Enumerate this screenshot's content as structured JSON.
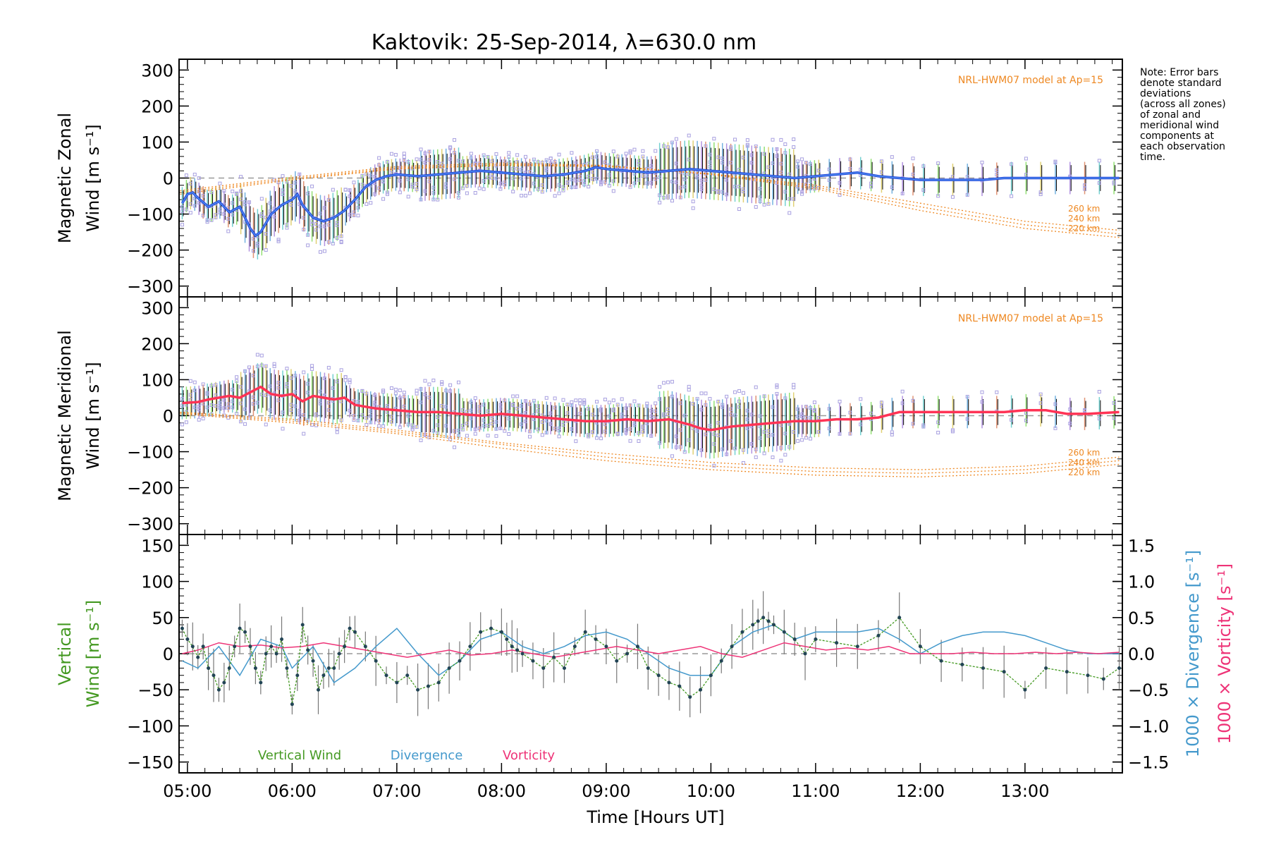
{
  "page_title": "Kaktovik: 25-Sep-2014, λ=630.0 nm",
  "note": {
    "lines": [
      "Note: Error bars",
      "denote standard",
      "deviations",
      "(across all zones)",
      "of zonal and",
      "meridional wind",
      "components at",
      "each observation",
      "time."
    ]
  },
  "colors": {
    "zonal_line": "#2244dd",
    "zonal_line_light": "#5599ee",
    "meridional_line": "#ff3355",
    "zone_points": "#a8a0e0",
    "model": "#ee8822",
    "vertical_wind": "#449922",
    "divergence": "#4499cc",
    "vorticity": "#ee3377",
    "error_bar": "#000000",
    "vertical_error": "#777777"
  },
  "chart_data": [
    {
      "type": "line",
      "name": "zonal",
      "ylabel_lines": [
        "Magnetic Zonal",
        "Wind [m s^-1]"
      ],
      "ylim": [
        -330,
        330
      ],
      "yticks": [
        -300,
        -200,
        -100,
        0,
        100,
        200,
        300
      ],
      "model_label": "NRL-HWM07 model at Ap=15",
      "model_series": [
        {
          "name": "260 km",
          "x": [
            4.93,
            6.0,
            7.0,
            8.0,
            9.0,
            10.0,
            11.0,
            12.0,
            13.0,
            13.9
          ],
          "y": [
            -45,
            -5,
            25,
            35,
            32,
            12,
            -20,
            -70,
            -120,
            -145
          ]
        },
        {
          "name": "240 km",
          "x": [
            4.93,
            6.0,
            7.0,
            8.0,
            9.0,
            10.0,
            11.0,
            12.0,
            13.0,
            13.9
          ],
          "y": [
            -40,
            -2,
            28,
            38,
            33,
            12,
            -25,
            -80,
            -130,
            -155
          ]
        },
        {
          "name": "220 km",
          "x": [
            4.93,
            6.0,
            7.0,
            8.0,
            9.0,
            10.0,
            11.0,
            12.0,
            13.0,
            13.9
          ],
          "y": [
            -35,
            2,
            32,
            42,
            35,
            10,
            -30,
            -90,
            -140,
            -165
          ]
        }
      ],
      "mean_series": {
        "name": "Magnetic Zonal Wind",
        "x": [
          4.95,
          5.0,
          5.05,
          5.1,
          5.2,
          5.3,
          5.4,
          5.5,
          5.6,
          5.65,
          5.7,
          5.8,
          5.9,
          6.0,
          6.05,
          6.1,
          6.2,
          6.3,
          6.4,
          6.5,
          6.6,
          6.7,
          6.8,
          6.9,
          7.0,
          7.2,
          7.4,
          7.6,
          7.8,
          8.0,
          8.2,
          8.4,
          8.6,
          8.8,
          8.9,
          9.0,
          9.2,
          9.4,
          9.6,
          9.8,
          10.0,
          10.2,
          10.4,
          10.6,
          10.8,
          11.0,
          11.2,
          11.4,
          11.6,
          11.8,
          12.0,
          12.2,
          12.4,
          12.6,
          12.8,
          13.0,
          13.2,
          13.4,
          13.6,
          13.9
        ],
        "y": [
          -70,
          -45,
          -40,
          -55,
          -80,
          -65,
          -95,
          -80,
          -140,
          -160,
          -150,
          -100,
          -75,
          -60,
          -45,
          -75,
          -110,
          -120,
          -110,
          -90,
          -60,
          -25,
          -5,
          5,
          10,
          5,
          10,
          15,
          20,
          15,
          10,
          5,
          10,
          20,
          30,
          25,
          20,
          15,
          20,
          25,
          20,
          15,
          10,
          5,
          0,
          5,
          10,
          15,
          5,
          0,
          -5,
          -5,
          -5,
          -5,
          0,
          0,
          0,
          0,
          0,
          0
        ]
      }
    },
    {
      "type": "line",
      "name": "meridional",
      "ylabel_lines": [
        "Magnetic Meridional",
        "Wind [m s^-1]"
      ],
      "ylim": [
        -330,
        330
      ],
      "yticks": [
        -300,
        -200,
        -100,
        0,
        100,
        200,
        300
      ],
      "model_label": "NRL-HWM07 model at Ap=15",
      "model_series": [
        {
          "name": "260 km",
          "x": [
            4.93,
            6.0,
            7.0,
            8.0,
            9.0,
            10.0,
            11.0,
            12.0,
            13.0,
            13.9
          ],
          "y": [
            10,
            -10,
            -40,
            -75,
            -105,
            -130,
            -145,
            -150,
            -140,
            -115
          ]
        },
        {
          "name": "240 km",
          "x": [
            4.93,
            6.0,
            7.0,
            8.0,
            9.0,
            10.0,
            11.0,
            12.0,
            13.0,
            13.9
          ],
          "y": [
            8,
            -15,
            -45,
            -80,
            -115,
            -140,
            -155,
            -160,
            -150,
            -125
          ]
        },
        {
          "name": "220 km",
          "x": [
            4.93,
            6.0,
            7.0,
            8.0,
            9.0,
            10.0,
            11.0,
            12.0,
            13.0,
            13.9
          ],
          "y": [
            5,
            -20,
            -50,
            -90,
            -125,
            -150,
            -165,
            -170,
            -160,
            -135
          ]
        }
      ],
      "mean_series": {
        "name": "Magnetic Meridional Wind",
        "x": [
          4.95,
          5.1,
          5.2,
          5.3,
          5.4,
          5.5,
          5.6,
          5.7,
          5.8,
          5.9,
          6.0,
          6.1,
          6.2,
          6.3,
          6.4,
          6.5,
          6.6,
          6.8,
          7.0,
          7.2,
          7.4,
          7.6,
          7.8,
          8.0,
          8.2,
          8.4,
          8.6,
          8.8,
          9.0,
          9.2,
          9.4,
          9.6,
          9.8,
          9.9,
          10.0,
          10.2,
          10.4,
          10.6,
          10.8,
          11.0,
          11.2,
          11.4,
          11.6,
          11.8,
          12.0,
          12.2,
          12.4,
          12.6,
          12.8,
          13.0,
          13.2,
          13.4,
          13.6,
          13.9
        ],
        "y": [
          35,
          38,
          45,
          50,
          55,
          50,
          65,
          80,
          60,
          55,
          60,
          40,
          55,
          50,
          45,
          50,
          30,
          20,
          15,
          10,
          10,
          5,
          0,
          5,
          0,
          -5,
          -10,
          -15,
          -15,
          -10,
          -15,
          -10,
          -25,
          -35,
          -40,
          -30,
          -25,
          -20,
          -15,
          -15,
          -10,
          -10,
          -5,
          10,
          10,
          10,
          10,
          10,
          10,
          15,
          15,
          5,
          5,
          10
        ]
      }
    },
    {
      "type": "line",
      "name": "vertical",
      "ylabel_lines": [
        "Vertical",
        "Wind [m s^-1]"
      ],
      "ylim": [
        -165,
        165
      ],
      "yticks": [
        -150,
        -100,
        -50,
        0,
        50,
        100,
        150
      ],
      "y2lim": [
        -1.65,
        1.65
      ],
      "y2ticks": [
        -1.5,
        -1.0,
        -0.5,
        0.0,
        0.5,
        1.0,
        1.5
      ],
      "y2label_divergence": "1000 × Divergence [s^-1]",
      "y2label_vorticity": "1000 × Vorticity [s^-1]",
      "legend": [
        "Vertical Wind",
        "Divergence",
        "Vorticity"
      ],
      "series": [
        {
          "name": "Vertical Wind",
          "x": [
            4.95,
            5.0,
            5.05,
            5.1,
            5.15,
            5.2,
            5.25,
            5.3,
            5.35,
            5.4,
            5.45,
            5.5,
            5.55,
            5.6,
            5.65,
            5.7,
            5.75,
            5.8,
            5.85,
            5.9,
            5.95,
            6.0,
            6.05,
            6.1,
            6.15,
            6.2,
            6.25,
            6.3,
            6.35,
            6.4,
            6.45,
            6.5,
            6.55,
            6.6,
            6.7,
            6.8,
            6.9,
            7.0,
            7.1,
            7.2,
            7.3,
            7.4,
            7.5,
            7.6,
            7.7,
            7.8,
            7.9,
            8.0,
            8.05,
            8.1,
            8.15,
            8.2,
            8.3,
            8.4,
            8.5,
            8.6,
            8.7,
            8.8,
            8.9,
            9.0,
            9.1,
            9.2,
            9.3,
            9.4,
            9.5,
            9.6,
            9.7,
            9.8,
            9.9,
            10.0,
            10.1,
            10.2,
            10.3,
            10.4,
            10.45,
            10.5,
            10.55,
            10.6,
            10.7,
            10.8,
            10.9,
            11.0,
            11.2,
            11.4,
            11.6,
            11.8,
            12.0,
            12.2,
            12.4,
            12.6,
            12.8,
            13.0,
            13.2,
            13.4,
            13.6,
            13.75,
            13.9
          ],
          "y": [
            35,
            20,
            10,
            -5,
            10,
            -20,
            -30,
            -50,
            -40,
            -20,
            10,
            35,
            30,
            10,
            -20,
            -40,
            0,
            10,
            0,
            20,
            -20,
            -70,
            -30,
            40,
            5,
            -10,
            -50,
            -30,
            -20,
            -20,
            0,
            10,
            35,
            30,
            10,
            -10,
            -30,
            -40,
            -30,
            -50,
            -45,
            -40,
            -20,
            -10,
            10,
            30,
            35,
            30,
            20,
            10,
            5,
            0,
            -10,
            -20,
            -5,
            -20,
            10,
            30,
            20,
            10,
            -10,
            0,
            10,
            -20,
            -30,
            -40,
            -45,
            -60,
            -50,
            -30,
            -10,
            10,
            30,
            40,
            45,
            50,
            45,
            40,
            30,
            20,
            0,
            20,
            15,
            10,
            25,
            50,
            10,
            -10,
            -15,
            -20,
            -25,
            -50,
            -20,
            -25,
            -30,
            -35,
            -20
          ]
        },
        {
          "name": "Divergence",
          "x": [
            4.95,
            5.1,
            5.3,
            5.5,
            5.7,
            5.9,
            6.0,
            6.2,
            6.4,
            6.6,
            6.8,
            7.0,
            7.2,
            7.4,
            7.6,
            7.8,
            8.0,
            8.2,
            8.4,
            8.6,
            8.8,
            9.0,
            9.2,
            9.4,
            9.6,
            9.8,
            10.0,
            10.2,
            10.4,
            10.6,
            10.8,
            11.0,
            11.2,
            11.4,
            11.6,
            11.8,
            12.0,
            12.2,
            12.4,
            12.6,
            12.8,
            13.0,
            13.2,
            13.4,
            13.6,
            13.9
          ],
          "y": [
            -0.1,
            -0.2,
            0.1,
            -0.3,
            0.2,
            0.1,
            -0.2,
            0.1,
            -0.4,
            -0.2,
            0.1,
            0.35,
            0.0,
            -0.3,
            -0.1,
            0.2,
            0.3,
            0.1,
            0.0,
            0.1,
            0.25,
            0.3,
            0.2,
            0.0,
            -0.2,
            -0.3,
            -0.3,
            0.1,
            0.3,
            0.4,
            0.2,
            0.3,
            0.3,
            0.3,
            0.35,
            0.2,
            0.0,
            0.15,
            0.25,
            0.3,
            0.3,
            0.25,
            0.15,
            0.05,
            0.0,
            0.0
          ]
        },
        {
          "name": "Vorticity",
          "x": [
            4.95,
            5.1,
            5.3,
            5.5,
            5.7,
            5.9,
            6.1,
            6.3,
            6.5,
            6.7,
            6.9,
            7.1,
            7.3,
            7.5,
            7.7,
            7.9,
            8.1,
            8.3,
            8.5,
            8.7,
            8.9,
            9.1,
            9.3,
            9.5,
            9.7,
            9.9,
            10.1,
            10.3,
            10.5,
            10.7,
            10.9,
            11.1,
            11.3,
            11.5,
            11.7,
            11.9,
            12.1,
            12.3,
            12.5,
            12.7,
            12.9,
            13.1,
            13.3,
            13.5,
            13.7,
            13.9
          ],
          "y": [
            0.0,
            0.05,
            0.15,
            0.1,
            0.12,
            0.08,
            0.1,
            0.15,
            0.1,
            0.05,
            0.0,
            -0.05,
            0.0,
            0.05,
            -0.02,
            0.0,
            0.05,
            0.0,
            -0.05,
            0.0,
            0.05,
            0.1,
            0.05,
            0.0,
            0.05,
            0.1,
            0.0,
            -0.05,
            0.05,
            0.15,
            0.1,
            0.05,
            0.08,
            0.05,
            0.1,
            0.0,
            0.0,
            0.0,
            0.02,
            0.0,
            0.0,
            0.02,
            0.0,
            0.02,
            0.0,
            0.02
          ]
        }
      ]
    }
  ],
  "xaxis": {
    "label": "Time [Hours UT]",
    "xlim": [
      4.92,
      13.93
    ],
    "ticks": [
      5,
      6,
      7,
      8,
      9,
      10,
      11,
      12,
      13
    ],
    "tick_labels": [
      "05:00",
      "06:00",
      "07:00",
      "08:00",
      "09:00",
      "10:00",
      "11:00",
      "12:00",
      "13:00"
    ]
  }
}
